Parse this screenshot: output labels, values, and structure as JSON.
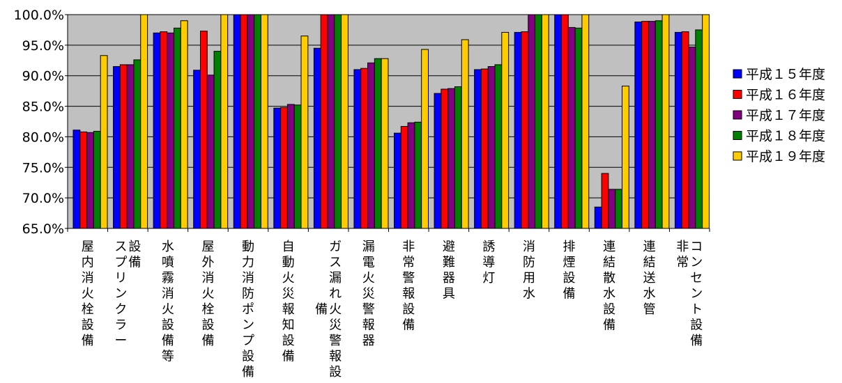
{
  "chart_data": {
    "type": "bar",
    "title": "",
    "xlabel": "",
    "ylabel": "",
    "ylim": [
      65,
      100
    ],
    "yticks": [
      "100.0%",
      "95.0%",
      "90.0%",
      "85.0%",
      "80.0%",
      "75.0%",
      "70.0%",
      "65.0%"
    ],
    "grid": true,
    "legend_position": "right",
    "categories": [
      "屋内消火栓設備",
      "スプリンクラー設備",
      "水噴霧消火設備等",
      "屋外消火栓設備",
      "動力消防ポンプ設備",
      "自動火災報知設備",
      "ガス漏れ火災警報設備",
      "漏電火災警報器",
      "非常警報設備",
      "避難器具",
      "誘導灯",
      "消防用水",
      "排煙設備",
      "連結散水設備",
      "連結送水管",
      "非常コンセント設備"
    ],
    "category_label_columns": [
      [
        "屋内消火栓設備"
      ],
      [
        "スプリンクラー",
        "設備"
      ],
      [
        "水噴霧消火設備等"
      ],
      [
        "屋外消火栓設備"
      ],
      [
        "動力消防ポンプ設備"
      ],
      [
        "自動火災報知設備"
      ],
      [
        "備",
        "ガス漏れ火災警報設"
      ],
      [
        "漏電火災警報器"
      ],
      [
        "非常警報設備"
      ],
      [
        "避難器具"
      ],
      [
        "誘導灯"
      ],
      [
        "消防用水"
      ],
      [
        "排煙設備"
      ],
      [
        "連結散水設備"
      ],
      [
        "連結送水管"
      ],
      [
        "非常",
        "コンセント設備"
      ]
    ],
    "series": [
      {
        "name": "平成１５年度",
        "color": "#0000ff",
        "values": [
          81.1,
          91.5,
          97.0,
          90.9,
          100.0,
          84.7,
          94.5,
          91.0,
          80.6,
          87.1,
          91.0,
          97.1,
          100.0,
          68.5,
          98.8,
          97.1
        ]
      },
      {
        "name": "平成１６年度",
        "color": "#ff0000",
        "values": [
          80.8,
          91.8,
          97.2,
          97.3,
          100.0,
          84.8,
          100.0,
          91.2,
          81.7,
          87.8,
          91.1,
          97.2,
          100.0,
          74.0,
          98.9,
          97.2
        ]
      },
      {
        "name": "平成１７年度",
        "color": "#800080",
        "values": [
          80.7,
          91.8,
          97.0,
          90.1,
          100.0,
          85.3,
          100.0,
          92.1,
          82.3,
          87.9,
          91.5,
          100.0,
          97.9,
          71.4,
          98.9,
          94.7
        ]
      },
      {
        "name": "平成１８年度",
        "color": "#008000",
        "values": [
          80.9,
          92.6,
          97.8,
          94.0,
          100.0,
          85.2,
          100.0,
          92.8,
          82.4,
          88.2,
          91.8,
          100.0,
          97.8,
          71.4,
          99.0,
          97.5
        ]
      },
      {
        "name": "平成１９年度",
        "color": "#ffcc00",
        "values": [
          93.3,
          100.0,
          99.0,
          100.0,
          100.0,
          96.5,
          100.0,
          92.8,
          94.3,
          95.9,
          97.1,
          100.0,
          100.0,
          88.3,
          100.0,
          100.0
        ]
      }
    ],
    "colors": {
      "plot_background": "#c0c0c0",
      "gridline": "#000000",
      "bar_outline": "#000000"
    }
  }
}
